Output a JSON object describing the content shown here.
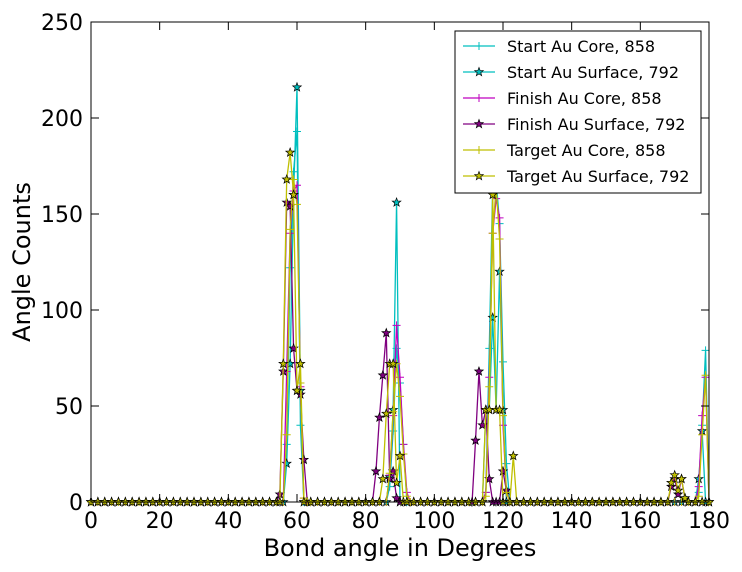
{
  "chart_data": {
    "type": "line",
    "xlabel": "Bond angle in Degrees",
    "ylabel": "Angle Counts",
    "xlim": [
      0,
      180
    ],
    "ylim": [
      0,
      250
    ],
    "xticks": [
      0,
      20,
      40,
      60,
      80,
      100,
      120,
      140,
      160,
      180
    ],
    "yticks": [
      0,
      50,
      100,
      150,
      200,
      250
    ],
    "grid": false,
    "legend_position": "top-right",
    "series": [
      {
        "name": "Start Au Core, 858",
        "color": "#00bfbf",
        "marker": "plus",
        "points": [
          [
            0,
            0
          ],
          [
            56,
            0
          ],
          [
            57,
            30
          ],
          [
            58,
            122
          ],
          [
            59,
            172
          ],
          [
            60,
            193
          ],
          [
            61,
            40
          ],
          [
            62,
            0
          ],
          [
            86,
            0
          ],
          [
            87,
            8
          ],
          [
            88,
            37
          ],
          [
            89,
            80
          ],
          [
            90,
            62
          ],
          [
            91,
            30
          ],
          [
            92,
            0
          ],
          [
            114,
            0
          ],
          [
            115,
            5
          ],
          [
            116,
            80
          ],
          [
            117,
            165
          ],
          [
            118,
            168
          ],
          [
            119,
            145
          ],
          [
            120,
            73
          ],
          [
            121,
            20
          ],
          [
            122,
            0
          ],
          [
            176,
            0
          ],
          [
            177,
            5
          ],
          [
            178,
            40
          ],
          [
            179,
            79
          ],
          [
            180,
            0
          ]
        ]
      },
      {
        "name": "Start Au Surface, 792",
        "color": "#00bfbf",
        "marker": "star",
        "points": [
          [
            0,
            0
          ],
          [
            56,
            0
          ],
          [
            57,
            20
          ],
          [
            58,
            72
          ],
          [
            59,
            160
          ],
          [
            60,
            216
          ],
          [
            61,
            58
          ],
          [
            62,
            0
          ],
          [
            86,
            0
          ],
          [
            87,
            13
          ],
          [
            88,
            48
          ],
          [
            89,
            156
          ],
          [
            90,
            0
          ],
          [
            114,
            0
          ],
          [
            115,
            48
          ],
          [
            116,
            48
          ],
          [
            117,
            96
          ],
          [
            118,
            48
          ],
          [
            119,
            120
          ],
          [
            120,
            48
          ],
          [
            121,
            0
          ],
          [
            176,
            0
          ],
          [
            177,
            12
          ],
          [
            178,
            37
          ],
          [
            179,
            0
          ]
        ]
      },
      {
        "name": "Finish Au Core, 858",
        "color": "#bf00bf",
        "marker": "plus",
        "points": [
          [
            0,
            0
          ],
          [
            56,
            0
          ],
          [
            57,
            68
          ],
          [
            58,
            140
          ],
          [
            59,
            162
          ],
          [
            60,
            165
          ],
          [
            61,
            60
          ],
          [
            62,
            2
          ],
          [
            63,
            0
          ],
          [
            86,
            0
          ],
          [
            87,
            14
          ],
          [
            88,
            45
          ],
          [
            89,
            92
          ],
          [
            90,
            65
          ],
          [
            91,
            30
          ],
          [
            92,
            5
          ],
          [
            93,
            0
          ],
          [
            114,
            0
          ],
          [
            115,
            5
          ],
          [
            116,
            65
          ],
          [
            117,
            140
          ],
          [
            118,
            158
          ],
          [
            119,
            148
          ],
          [
            120,
            40
          ],
          [
            121,
            5
          ],
          [
            122,
            0
          ],
          [
            176,
            0
          ],
          [
            177,
            8
          ],
          [
            178,
            45
          ],
          [
            179,
            65
          ],
          [
            180,
            0
          ]
        ]
      },
      {
        "name": "Finish Au Surface, 792",
        "color": "#800080",
        "marker": "star",
        "points": [
          [
            0,
            0
          ],
          [
            54,
            0
          ],
          [
            55,
            4
          ],
          [
            56,
            68
          ],
          [
            57,
            156
          ],
          [
            58,
            154
          ],
          [
            59,
            80
          ],
          [
            60,
            58
          ],
          [
            61,
            56
          ],
          [
            62,
            22
          ],
          [
            63,
            0
          ],
          [
            82,
            0
          ],
          [
            83,
            16
          ],
          [
            84,
            44
          ],
          [
            85,
            66
          ],
          [
            86,
            88
          ],
          [
            87,
            12
          ],
          [
            88,
            16
          ],
          [
            89,
            2
          ],
          [
            90,
            0
          ],
          [
            111,
            0
          ],
          [
            112,
            32
          ],
          [
            113,
            68
          ],
          [
            114,
            40
          ],
          [
            115,
            48
          ],
          [
            116,
            12
          ],
          [
            117,
            0
          ],
          [
            119,
            0
          ],
          [
            120,
            16
          ],
          [
            121,
            6
          ],
          [
            122,
            0
          ],
          [
            168,
            0
          ],
          [
            169,
            8
          ],
          [
            170,
            12
          ],
          [
            171,
            4
          ],
          [
            172,
            12
          ],
          [
            173,
            2
          ],
          [
            174,
            0
          ]
        ]
      },
      {
        "name": "Target Au Core, 858",
        "color": "#bfbf00",
        "marker": "plus",
        "points": [
          [
            0,
            0
          ],
          [
            56,
            0
          ],
          [
            57,
            35
          ],
          [
            58,
            142
          ],
          [
            59,
            168
          ],
          [
            60,
            155
          ],
          [
            61,
            62
          ],
          [
            62,
            2
          ],
          [
            63,
            0
          ],
          [
            86,
            0
          ],
          [
            87,
            15
          ],
          [
            88,
            47
          ],
          [
            89,
            72
          ],
          [
            90,
            55
          ],
          [
            91,
            25
          ],
          [
            92,
            3
          ],
          [
            93,
            0
          ],
          [
            114,
            0
          ],
          [
            115,
            3
          ],
          [
            116,
            60
          ],
          [
            117,
            140
          ],
          [
            118,
            164
          ],
          [
            119,
            137
          ],
          [
            120,
            45
          ],
          [
            121,
            5
          ],
          [
            122,
            0
          ],
          [
            176,
            0
          ],
          [
            177,
            3
          ],
          [
            178,
            35
          ],
          [
            179,
            66
          ],
          [
            180,
            0
          ]
        ]
      },
      {
        "name": "Target Au Surface, 792",
        "color": "#bfbf00",
        "marker": "star",
        "points": [
          [
            0,
            0
          ],
          [
            55,
            0
          ],
          [
            56,
            72
          ],
          [
            57,
            168
          ],
          [
            58,
            182
          ],
          [
            59,
            160
          ],
          [
            60,
            58
          ],
          [
            61,
            72
          ],
          [
            62,
            0
          ],
          [
            84,
            0
          ],
          [
            85,
            12
          ],
          [
            86,
            46
          ],
          [
            87,
            72
          ],
          [
            88,
            72
          ],
          [
            89,
            10
          ],
          [
            90,
            24
          ],
          [
            91,
            0
          ],
          [
            114,
            0
          ],
          [
            115,
            48
          ],
          [
            116,
            48
          ],
          [
            117,
            160
          ],
          [
            118,
            48
          ],
          [
            119,
            48
          ],
          [
            120,
            0
          ],
          [
            122,
            0
          ],
          [
            123,
            24
          ],
          [
            124,
            0
          ],
          [
            168,
            0
          ],
          [
            169,
            10
          ],
          [
            170,
            14
          ],
          [
            171,
            6
          ],
          [
            172,
            12
          ],
          [
            173,
            2
          ],
          [
            174,
            0
          ]
        ]
      }
    ]
  }
}
